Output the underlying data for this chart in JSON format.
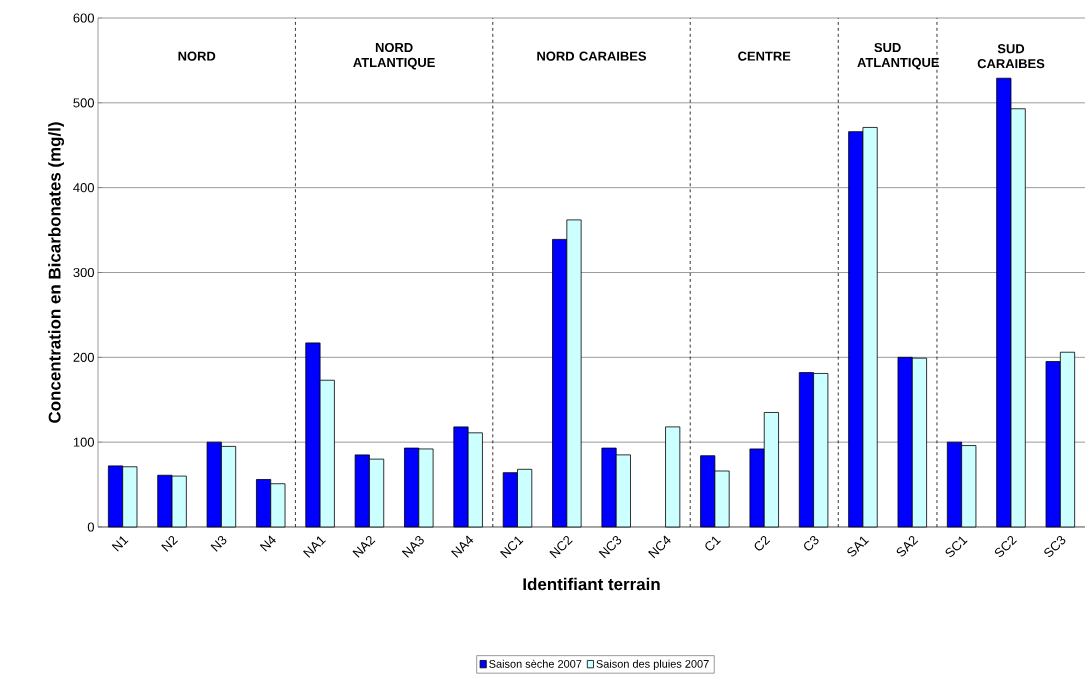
{
  "chart_data": {
    "type": "bar",
    "xlabel": "Identifiant terrain",
    "ylabel": "Concentration en Bicarbonates (mg/l)",
    "categories": [
      "N1",
      "N2",
      "N3",
      "N4",
      "NA1",
      "NA2",
      "NA3",
      "NA4",
      "NC1",
      "NC2",
      "NC3",
      "NC4",
      "C1",
      "C2",
      "C3",
      "SA1",
      "SA2",
      "SC1",
      "SC2",
      "SC3"
    ],
    "series": [
      {
        "name": "Saison sèche 2007",
        "color": "#0000ff",
        "values": [
          72,
          61,
          100,
          56,
          217,
          85,
          93,
          118,
          64,
          339,
          93,
          null,
          84,
          92,
          182,
          466,
          200,
          100,
          529,
          195
        ]
      },
      {
        "name": "Saison des pluies 2007",
        "color": "#ccffff",
        "values": [
          71,
          60,
          95,
          51,
          173,
          80,
          92,
          111,
          68,
          362,
          85,
          118,
          66,
          135,
          181,
          471,
          199,
          96,
          493,
          206
        ]
      }
    ],
    "ylim": [
      0,
      600
    ],
    "yticks": [
      0,
      100,
      200,
      300,
      400,
      500,
      600
    ],
    "grid": "y",
    "legend": "bottom",
    "annotations": [
      "NORD",
      "NORD ATLANTIQUE",
      "NORD CARAIBES",
      "CENTRE",
      "SUD ATLANTIQUE",
      "SUD CARAIBES"
    ]
  }
}
